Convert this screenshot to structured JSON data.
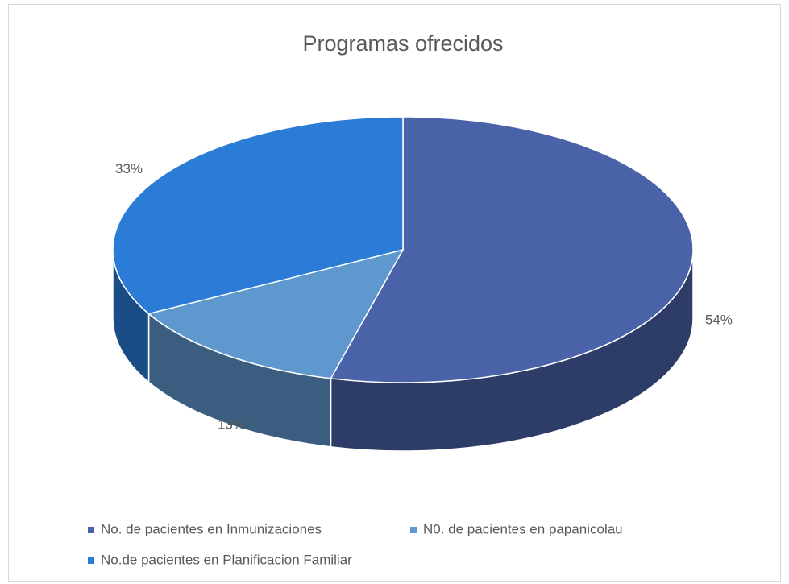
{
  "chart_data": {
    "type": "pie",
    "title": "Programas ofrecidos",
    "categories": [
      "No. de pacientes en Inmunizaciones",
      "N0. de pacientes en papanicolau",
      "No.de pacientes en Planificacion Familiar"
    ],
    "values": [
      54,
      13,
      33
    ],
    "value_labels": [
      "54%",
      "13%",
      "33%"
    ],
    "colors": [
      "#4a62a8",
      "#5f98cf",
      "#2a7cd6"
    ],
    "legend": "bottom"
  }
}
